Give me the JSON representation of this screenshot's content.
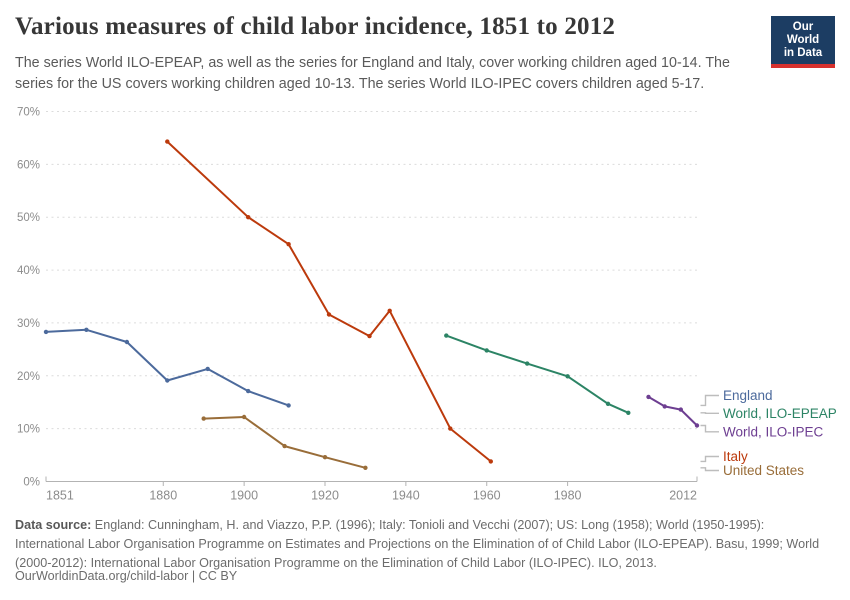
{
  "header": {
    "title": "Various measures of child labor incidence, 1851 to 2012",
    "subtitle": "The series World ILO-EPEAP, as well as the series for England and Italy, cover working children aged 10-14. The series for the US covers working children aged 10-13. The series World ILO-IPEC covers children aged 5-17.",
    "logo": {
      "line1": "Our World",
      "line2": "in Data",
      "bg_color": "#1c3d63",
      "bar_color": "#d7312e"
    }
  },
  "chart_data": {
    "type": "line",
    "title": "Various measures of child labor incidence, 1851 to 2012",
    "xlabel": "",
    "ylabel": "",
    "x_range": [
      1851,
      2012
    ],
    "y_range": [
      0,
      70
    ],
    "x_ticks": [
      1851,
      1880,
      1900,
      1920,
      1940,
      1960,
      1980,
      2012
    ],
    "y_ticks": [
      0,
      10,
      20,
      30,
      40,
      50,
      60,
      70
    ],
    "y_tick_suffix": "%",
    "grid": true,
    "legend_position": "right",
    "colors": {
      "gridline": "#dcdcdc",
      "axis": "#b3b3b3",
      "tick_label": "#8c8c8c",
      "legend_leader": "#bdbdbd"
    },
    "series": [
      {
        "name": "England",
        "color": "#4c6a9c",
        "points": [
          [
            1851,
            28.3
          ],
          [
            1861,
            28.7
          ],
          [
            1871,
            26.4
          ],
          [
            1881,
            19.1
          ],
          [
            1891,
            21.3
          ],
          [
            1901,
            17.1
          ],
          [
            1911,
            14.4
          ]
        ]
      },
      {
        "name": "World, ILO-EPEAP",
        "color": "#2c8465",
        "points": [
          [
            1950,
            27.6
          ],
          [
            1960,
            24.8
          ],
          [
            1970,
            22.3
          ],
          [
            1980,
            19.9
          ],
          [
            1990,
            14.7
          ],
          [
            1995,
            13.0
          ]
        ]
      },
      {
        "name": "World, ILO-IPEC",
        "color": "#6d3e91",
        "points": [
          [
            2000,
            16.0
          ],
          [
            2004,
            14.2
          ],
          [
            2008,
            13.6
          ],
          [
            2012,
            10.6
          ]
        ]
      },
      {
        "name": "Italy",
        "color": "#bc3a0c",
        "points": [
          [
            1881,
            64.3
          ],
          [
            1901,
            50.0
          ],
          [
            1911,
            44.9
          ],
          [
            1921,
            31.6
          ],
          [
            1931,
            27.5
          ],
          [
            1936,
            32.3
          ],
          [
            1951,
            10.0
          ],
          [
            1961,
            3.8
          ]
        ]
      },
      {
        "name": "United States",
        "color": "#996d39",
        "points": [
          [
            1890,
            11.9
          ],
          [
            1900,
            12.2
          ],
          [
            1910,
            6.7
          ],
          [
            1920,
            4.6
          ],
          [
            1930,
            2.6
          ]
        ]
      }
    ]
  },
  "footer": {
    "source_label": "Data source:",
    "source_text": " England: Cunningham, H. and Viazzo, P.P. (1996); Italy: Tonioli and Vecchi (2007); US: Long (1958); World (1950-1995): International Labor Organisation Programme on Estimates and Projections on the Elimination of of Child Labor (ILO-EPEAP). Basu, 1999; World (2000-2012): International Labor Organisation Programme on the Elimination of Child Labor (ILO-IPEC). ILO, 2013.",
    "link_text": "OurWorldinData.org/child-labor",
    "divider": " | ",
    "license": "CC BY"
  }
}
